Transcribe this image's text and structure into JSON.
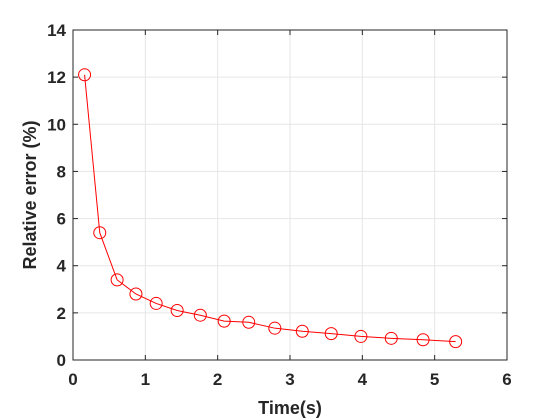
{
  "chart_data": {
    "type": "line",
    "title": "",
    "xlabel": "Time(s)",
    "ylabel": "Relative error (%)",
    "xlim": [
      0,
      6
    ],
    "ylim": [
      0,
      14
    ],
    "xticks": [
      0,
      1,
      2,
      3,
      4,
      5,
      6
    ],
    "yticks": [
      0,
      2,
      4,
      6,
      8,
      10,
      12,
      14
    ],
    "grid": true,
    "series": [
      {
        "color": "#ff0000",
        "marker": "circle",
        "points": [
          {
            "x": 0.16,
            "y": 12.1
          },
          {
            "x": 0.37,
            "y": 5.4
          },
          {
            "x": 0.61,
            "y": 3.4
          },
          {
            "x": 0.87,
            "y": 2.8
          },
          {
            "x": 1.15,
            "y": 2.4
          },
          {
            "x": 1.44,
            "y": 2.1
          },
          {
            "x": 1.76,
            "y": 1.9
          },
          {
            "x": 2.09,
            "y": 1.65
          },
          {
            "x": 2.43,
            "y": 1.6
          },
          {
            "x": 2.79,
            "y": 1.35
          },
          {
            "x": 3.17,
            "y": 1.22
          },
          {
            "x": 3.57,
            "y": 1.12
          },
          {
            "x": 3.98,
            "y": 1.0
          },
          {
            "x": 4.4,
            "y": 0.92
          },
          {
            "x": 4.84,
            "y": 0.86
          },
          {
            "x": 5.29,
            "y": 0.78
          }
        ]
      }
    ]
  }
}
